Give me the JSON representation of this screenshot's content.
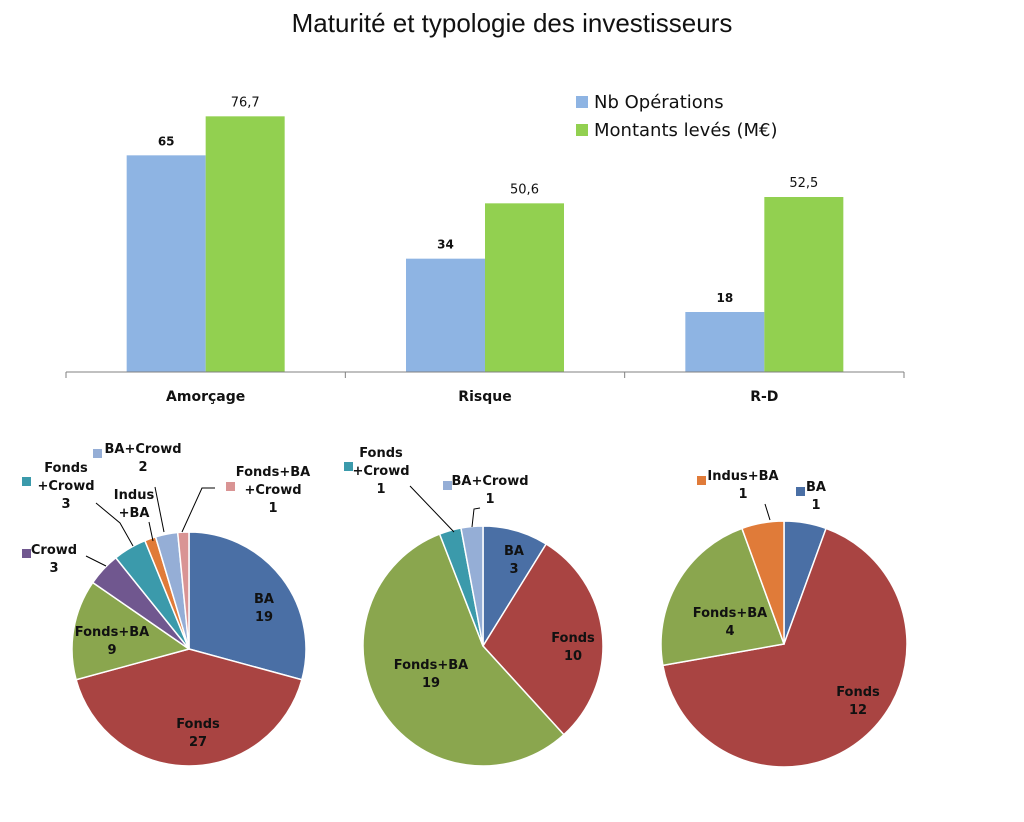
{
  "title": "Maturité et typologie des investisseurs",
  "colors": {
    "nb_operations": "#8eb4e3",
    "montants_leves": "#92d050",
    "BA": "#4a6fa5",
    "Fonds": "#a94442",
    "Fonds+BA": "#8aa64e",
    "Crowd": "#70578f",
    "Fonds+Crowd": "#3b9aab",
    "Indus+BA": "#e07b39",
    "BA+Crowd": "#95aed6",
    "Fonds+BA+Crowd": "#d99494"
  },
  "chart_data": [
    {
      "type": "bar",
      "categories": [
        "Amorçage",
        "Risque",
        "R-D"
      ],
      "series": [
        {
          "name": "Nb Opérations",
          "values": [
            65,
            34,
            18
          ],
          "labels": [
            "65",
            "34",
            "18"
          ]
        },
        {
          "name": "Montants levés (M€)",
          "values": [
            76.7,
            50.6,
            52.5
          ],
          "labels": [
            "76,7",
            "50,6",
            "52,5"
          ]
        }
      ],
      "ylim": [
        0,
        90
      ],
      "grid": false,
      "legend": "top-right"
    },
    {
      "type": "pie",
      "slices": [
        {
          "label": "BA",
          "value": 19,
          "lines": [
            "BA",
            "19"
          ]
        },
        {
          "label": "Fonds",
          "value": 27,
          "lines": [
            "Fonds",
            "27"
          ]
        },
        {
          "label": "Fonds+BA",
          "value": 9,
          "lines": [
            "Fonds+BA",
            "9"
          ]
        },
        {
          "label": "Crowd",
          "value": 3,
          "lines": [
            "Crowd",
            "3"
          ]
        },
        {
          "label": "Fonds+Crowd",
          "value": 3,
          "lines": [
            "Fonds",
            "+Crowd",
            "3"
          ]
        },
        {
          "label": "Indus+BA",
          "value": 1,
          "lines": [
            "Indus",
            "+BA"
          ]
        },
        {
          "label": "BA+Crowd",
          "value": 2,
          "lines": [
            "BA+Crowd",
            "2"
          ]
        },
        {
          "label": "Fonds+BA+Crowd",
          "value": 1,
          "lines": [
            "Fonds+BA",
            "+Crowd",
            "1"
          ]
        }
      ]
    },
    {
      "type": "pie",
      "slices": [
        {
          "label": "BA",
          "value": 3,
          "lines": [
            "BA",
            "3"
          ]
        },
        {
          "label": "Fonds",
          "value": 10,
          "lines": [
            "Fonds",
            "10"
          ]
        },
        {
          "label": "Fonds+BA",
          "value": 19,
          "lines": [
            "Fonds+BA",
            "19"
          ]
        },
        {
          "label": "Fonds+Crowd",
          "value": 1,
          "lines": [
            "Fonds",
            "+Crowd",
            "1"
          ]
        },
        {
          "label": "BA+Crowd",
          "value": 1,
          "lines": [
            "BA+Crowd",
            "1"
          ]
        }
      ]
    },
    {
      "type": "pie",
      "slices": [
        {
          "label": "BA",
          "value": 1,
          "lines": [
            "BA",
            "1"
          ]
        },
        {
          "label": "Fonds",
          "value": 12,
          "lines": [
            "Fonds",
            "12"
          ]
        },
        {
          "label": "Fonds+BA",
          "value": 4,
          "lines": [
            "Fonds+BA",
            "4"
          ]
        },
        {
          "label": "Indus+BA",
          "value": 1,
          "lines": [
            "Indus+BA",
            "1"
          ]
        }
      ]
    }
  ]
}
